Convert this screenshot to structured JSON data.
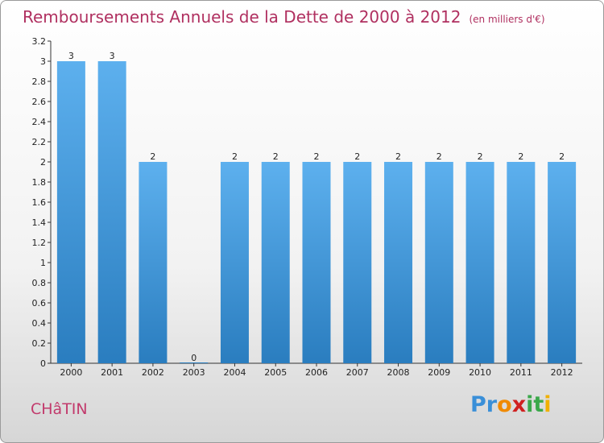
{
  "chart_data": {
    "type": "bar",
    "title": "Remboursements Annuels de la Dette de 2000 à 2012",
    "subtitle": "(en milliers d'€)",
    "categories": [
      "2000",
      "2001",
      "2002",
      "2003",
      "2004",
      "2005",
      "2006",
      "2007",
      "2008",
      "2009",
      "2010",
      "2011",
      "2012"
    ],
    "values": [
      3,
      3,
      2,
      0,
      2,
      2,
      2,
      2,
      2,
      2,
      2,
      2,
      2
    ],
    "data_labels": [
      "3",
      "3",
      "2",
      "0",
      "2",
      "2",
      "2",
      "2",
      "2",
      "2",
      "2",
      "2",
      "2"
    ],
    "ylim": [
      0,
      3.2
    ],
    "yticks": [
      "0",
      "0.2",
      "0.4",
      "0.6",
      "0.8",
      "1",
      "1.2",
      "1.4",
      "1.6",
      "1.8",
      "2",
      "2.2",
      "2.4",
      "2.6",
      "2.8",
      "3",
      "3.2"
    ],
    "ytick_values": [
      0,
      0.2,
      0.4,
      0.6,
      0.8,
      1,
      1.2,
      1.4,
      1.6,
      1.8,
      2,
      2.2,
      2.4,
      2.6,
      2.8,
      3,
      3.2
    ],
    "bar_color": "#4a9fe0",
    "grid": false
  },
  "commune": "CHâTIN",
  "logo": {
    "letters": [
      "P",
      "r",
      "o",
      "x",
      "i",
      "t",
      "i"
    ],
    "colors": [
      "#3a8fd8",
      "#3a8fd8",
      "#f08a00",
      "#d02020",
      "#3aa84a",
      "#3aa84a",
      "#f0b000"
    ]
  },
  "colors": {
    "title": "#b03060",
    "commune": "#c23a6c"
  }
}
